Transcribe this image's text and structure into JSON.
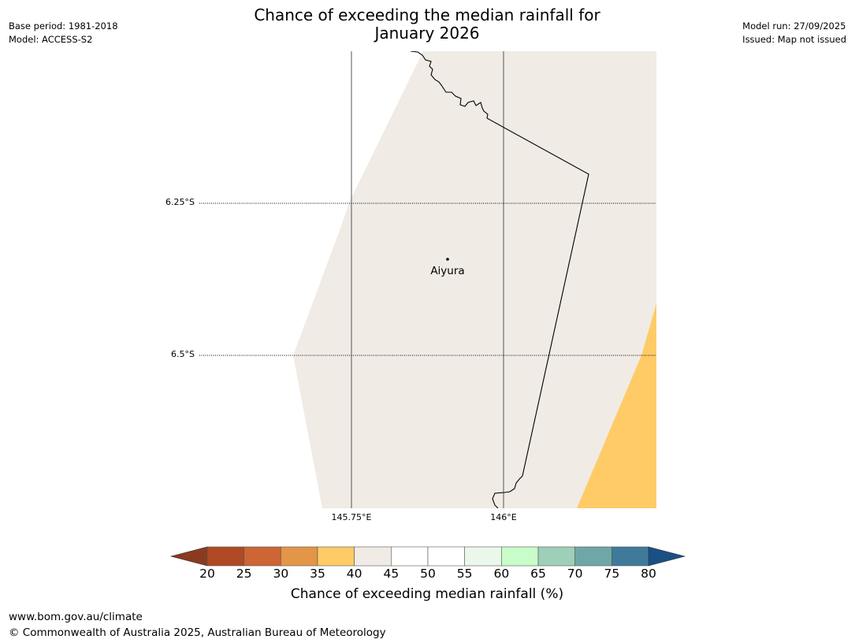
{
  "title": {
    "line1": "Chance of exceeding the median rainfall for",
    "line2": "January 2026"
  },
  "meta_left": {
    "base_period": "Base period: 1981-2018",
    "model": "Model: ACCESS-S2"
  },
  "meta_right": {
    "model_run": "Model run: 27/09/2025",
    "issued": "Issued: Map not issued"
  },
  "map": {
    "lat_labels": [
      "6.25°S",
      "6.5°S"
    ],
    "lon_labels": [
      "145.75°E",
      "146°E"
    ],
    "place": {
      "name": "Aiyura"
    },
    "colors": {
      "land_band_40_45": "#f0ebe5",
      "band_35_40": "#fecb66",
      "border": "#000000",
      "gridline": "#555555"
    }
  },
  "colorbar": {
    "ticks": [
      "20",
      "25",
      "30",
      "35",
      "40",
      "45",
      "50",
      "55",
      "60",
      "65",
      "70",
      "75",
      "80"
    ],
    "label": "Chance of exceeding median rainfall (%)",
    "low_extend_color": "#8b3a1f",
    "high_extend_color": "#1a4f84",
    "bins": [
      {
        "range": "20-25",
        "color": "#b04a24"
      },
      {
        "range": "25-30",
        "color": "#cd6535"
      },
      {
        "range": "30-35",
        "color": "#e39548"
      },
      {
        "range": "35-40",
        "color": "#fecb66"
      },
      {
        "range": "40-45",
        "color": "#f0ebe5"
      },
      {
        "range": "45-50",
        "color": "#ffffff"
      },
      {
        "range": "50-55",
        "color": "#ffffff"
      },
      {
        "range": "55-60",
        "color": "#ebf7eb"
      },
      {
        "range": "60-65",
        "color": "#c8fcc8"
      },
      {
        "range": "65-70",
        "color": "#9ecfb8"
      },
      {
        "range": "70-75",
        "color": "#6fa7a7"
      },
      {
        "range": "75-80",
        "color": "#3f7a9a"
      }
    ]
  },
  "footer": {
    "url": "www.bom.gov.au/climate",
    "copyright": "© Commonwealth of Australia 2025, Australian Bureau of Meteorology"
  }
}
